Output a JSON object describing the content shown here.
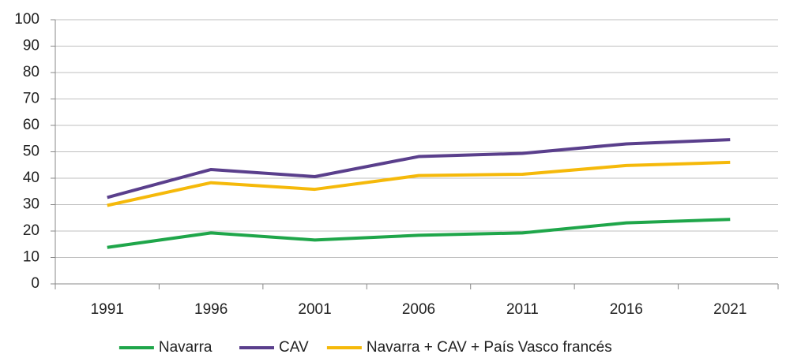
{
  "chart_data": {
    "type": "line",
    "categories": [
      "1991",
      "1996",
      "2001",
      "2006",
      "2011",
      "2016",
      "2021"
    ],
    "series": [
      {
        "name": "Navarra",
        "color": "#1fa64a",
        "values": [
          13.8,
          19.3,
          16.6,
          18.4,
          19.3,
          23.1,
          24.4
        ]
      },
      {
        "name": "CAV",
        "color": "#5a3f8c",
        "values": [
          32.7,
          43.3,
          40.6,
          48.2,
          49.4,
          53.0,
          54.6
        ]
      },
      {
        "name": "Navarra + CAV + País Vasco francés",
        "color": "#f5b90a",
        "values": [
          29.7,
          38.3,
          35.8,
          41.0,
          41.5,
          44.8,
          46.0
        ]
      }
    ],
    "ylim": [
      0,
      100
    ],
    "yticks": [
      0,
      10,
      20,
      30,
      40,
      50,
      60,
      70,
      80,
      90,
      100
    ],
    "grid": true,
    "legend": "bottom"
  }
}
